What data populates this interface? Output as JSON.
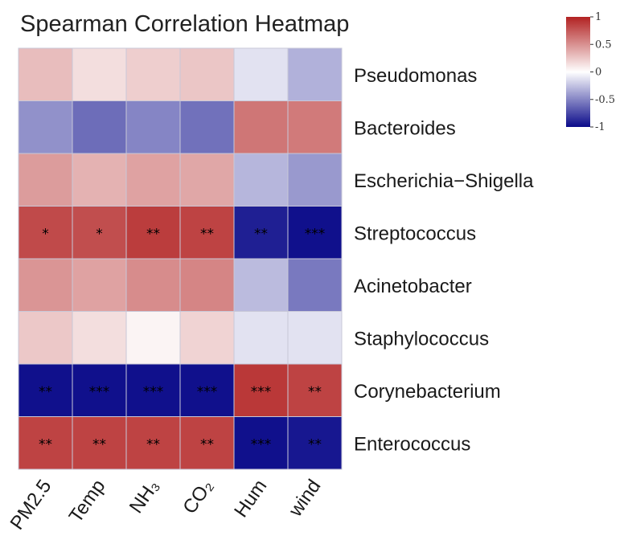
{
  "chart_data": {
    "type": "heatmap",
    "title": "Spearman Correlation Heatmap",
    "columns": [
      "PM2.5",
      "Temp",
      "NH₃",
      "CO₂",
      "Hum",
      "wind"
    ],
    "rows": [
      "Pseudomonas",
      "Bacteroides",
      "Escherichia−Shigella",
      "Streptococcus",
      "Acinetobacter",
      "Staphylococcus",
      "Corynebacterium",
      "Enterococcus"
    ],
    "values": [
      [
        0.3,
        0.15,
        0.22,
        0.26,
        -0.12,
        -0.32
      ],
      [
        -0.45,
        -0.6,
        -0.5,
        -0.58,
        0.62,
        0.6
      ],
      [
        0.45,
        0.35,
        0.42,
        0.4,
        -0.3,
        -0.42
      ],
      [
        0.82,
        0.8,
        0.88,
        0.85,
        -0.92,
        -0.98
      ],
      [
        0.48,
        0.42,
        0.52,
        0.55,
        -0.28,
        -0.55
      ],
      [
        0.25,
        0.15,
        0.05,
        0.2,
        -0.12,
        -0.12
      ],
      [
        -0.98,
        -0.98,
        -0.98,
        -0.98,
        0.9,
        0.85
      ],
      [
        0.85,
        0.85,
        0.85,
        0.85,
        -0.98,
        -0.95
      ]
    ],
    "significance": [
      [
        "",
        "",
        "",
        "",
        "",
        ""
      ],
      [
        "",
        "",
        "",
        "",
        "",
        ""
      ],
      [
        "",
        "",
        "",
        "",
        "",
        ""
      ],
      [
        "*",
        "*",
        "**",
        "**",
        "**",
        "***"
      ],
      [
        "",
        "",
        "",
        "",
        "",
        ""
      ],
      [
        "",
        "",
        "",
        "",
        "",
        ""
      ],
      [
        "**",
        "***",
        "***",
        "***",
        "***",
        "**"
      ],
      [
        "**",
        "**",
        "**",
        "**",
        "***",
        "**"
      ]
    ],
    "color_scale": {
      "min": -1,
      "max": 1,
      "low_color": "#0b0b8a",
      "mid_color": "#ffffff",
      "high_color": "#b22222"
    },
    "legend_ticks": [
      "1",
      "0.5",
      "0",
      "-0.5",
      "-1"
    ],
    "legend_values": [
      1,
      0.5,
      0,
      -0.5,
      -1
    ]
  }
}
